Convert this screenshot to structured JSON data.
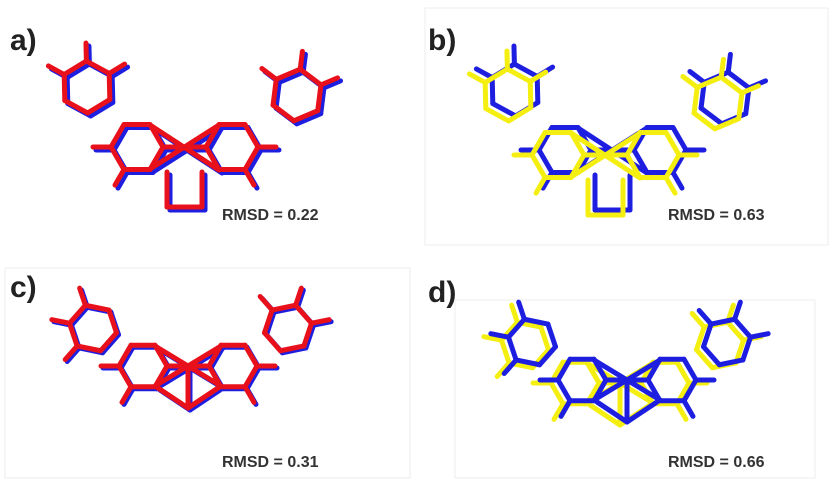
{
  "panels": [
    {
      "label": "a)",
      "rmsd": "RMSD = 0.22"
    },
    {
      "label": "b)",
      "rmsd": "RMSD = 0.63"
    },
    {
      "label": "c)",
      "rmsd": "RMSD = 0.31"
    },
    {
      "label": "d)",
      "rmsd": "RMSD = 0.66"
    }
  ]
}
